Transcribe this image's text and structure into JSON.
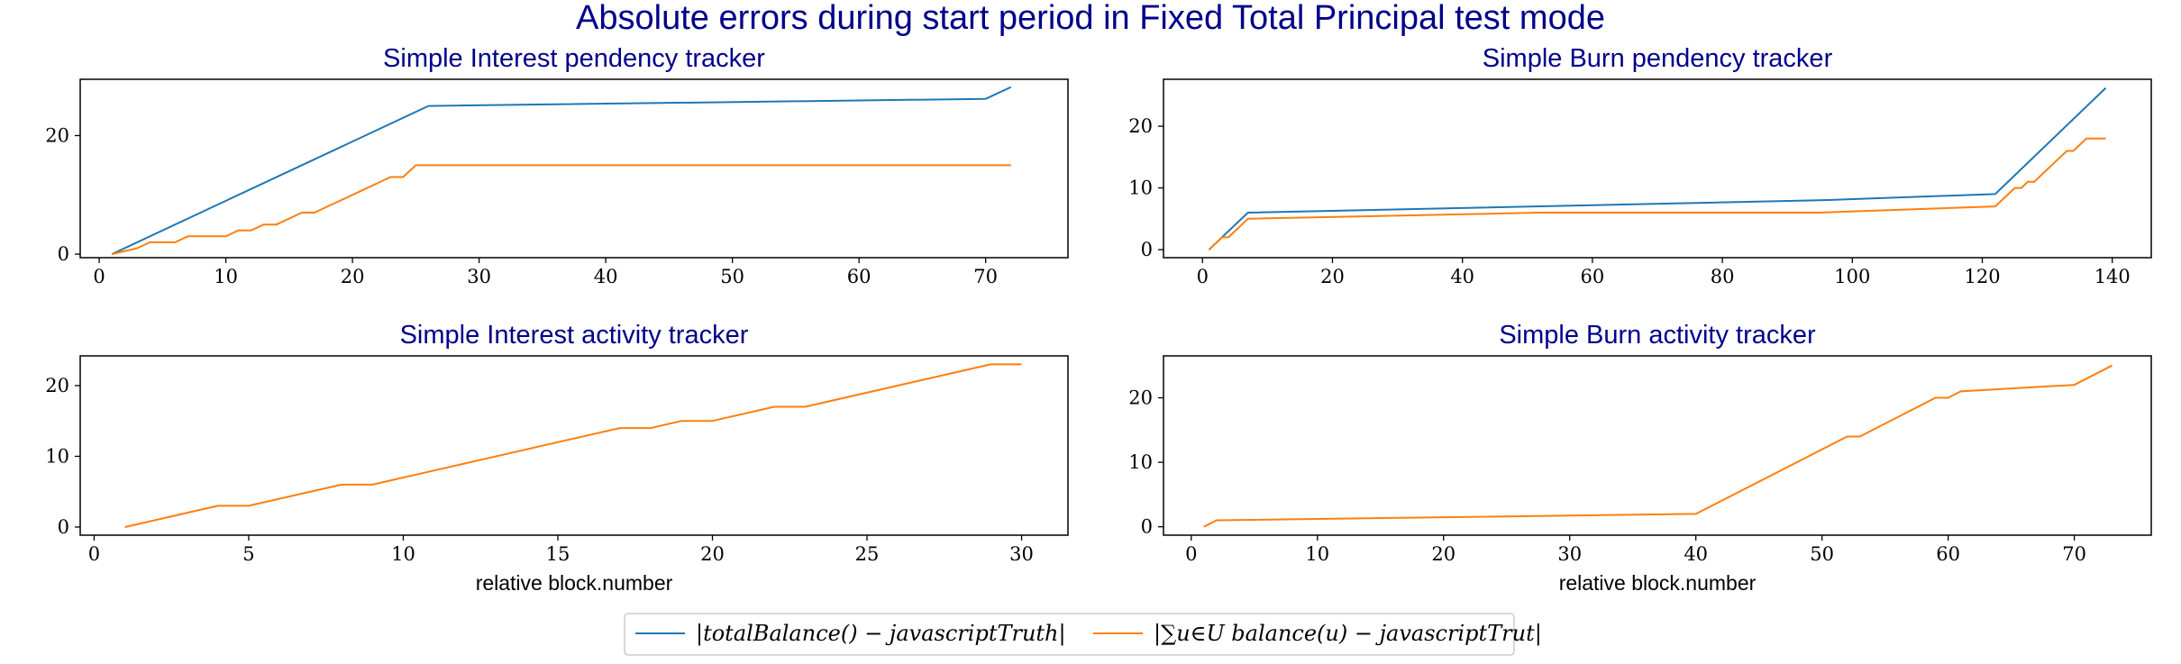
{
  "suptitle": "Absolute errors during start period in Fixed Total Principal test mode",
  "colors": {
    "title": "#00008b",
    "series_blue": "#1f77b4",
    "series_orange": "#ff7f0e",
    "legend_border": "#cccccc"
  },
  "legend": {
    "location": "bottom-center",
    "entries": [
      "|totalBalance() − javascriptTruth|",
      "|∑u∈U balance(u) − javascriptTrut|"
    ]
  },
  "chart_data": [
    {
      "type": "line",
      "title": "Simple Interest pendency tracker",
      "xlabel": "",
      "ylabel": "",
      "xlim": [
        -1.5,
        76.5
      ],
      "ylim": [
        -0.6,
        29.5
      ],
      "xticks": [
        0,
        10,
        20,
        30,
        40,
        50,
        60,
        70
      ],
      "yticks": [
        0,
        20
      ],
      "grid": false,
      "series": [
        {
          "name": "|totalBalance() − javascriptTruth|",
          "color": "#1f77b4",
          "x": [
            1,
            26,
            70,
            72
          ],
          "y": [
            0,
            25,
            26.2,
            28.2
          ]
        },
        {
          "name": "|∑u∈U balance(u) − javascriptTrut|",
          "color": "#ff7f0e",
          "x": [
            1,
            3,
            4,
            5,
            6,
            7,
            8,
            9,
            10,
            11,
            12,
            13,
            14,
            15,
            16,
            17,
            18,
            19,
            20,
            21,
            22,
            23,
            24,
            25,
            72
          ],
          "y": [
            0,
            1,
            2,
            2,
            2,
            3,
            3,
            3,
            3,
            4,
            4,
            5,
            5,
            6,
            7,
            7,
            8,
            9,
            10,
            11,
            12,
            13,
            13,
            15,
            15
          ]
        }
      ]
    },
    {
      "type": "line",
      "title": "Simple Burn pendency tracker",
      "xlabel": "",
      "ylabel": "",
      "xlim": [
        -6,
        146
      ],
      "ylim": [
        -1.3,
        27.6
      ],
      "xticks": [
        0,
        20,
        40,
        60,
        80,
        100,
        120,
        140
      ],
      "yticks": [
        0,
        10,
        20
      ],
      "grid": false,
      "series": [
        {
          "name": "|totalBalance() − javascriptTruth|",
          "color": "#1f77b4",
          "x": [
            1,
            7,
            95,
            122,
            139
          ],
          "y": [
            0,
            6,
            8,
            9,
            26.2
          ]
        },
        {
          "name": "|∑u∈U balance(u) − javascriptTrut|",
          "color": "#ff7f0e",
          "x": [
            1,
            2,
            3,
            4,
            5,
            6,
            7,
            52,
            95,
            122,
            124,
            125,
            126,
            127,
            128,
            129,
            130,
            131,
            132,
            133,
            134,
            135,
            136,
            137,
            138,
            139
          ],
          "y": [
            0,
            1,
            2,
            2,
            3,
            4,
            5,
            6,
            6,
            7,
            9,
            10,
            10,
            11,
            11,
            12,
            13,
            14,
            15,
            16,
            16,
            17,
            18,
            18,
            18,
            18
          ]
        }
      ]
    },
    {
      "type": "line",
      "title": "Simple Interest activity tracker",
      "xlabel": "relative block.number",
      "ylabel": "",
      "xlim": [
        -0.45,
        31.5
      ],
      "ylim": [
        -1.15,
        24.2
      ],
      "xticks": [
        0,
        5,
        10,
        15,
        20,
        25,
        30
      ],
      "yticks": [
        0,
        10,
        20
      ],
      "grid": false,
      "series": [
        {
          "name": "|∑u∈U balance(u) − javascriptTrut|",
          "color": "#ff7f0e",
          "x": [
            1,
            4,
            5,
            8,
            9,
            17,
            18,
            19,
            20,
            22,
            23,
            29,
            30
          ],
          "y": [
            0,
            3,
            3,
            6,
            6,
            14,
            14,
            15,
            15,
            17,
            17,
            23,
            23
          ]
        }
      ]
    },
    {
      "type": "line",
      "title": "Simple Burn activity tracker",
      "xlabel": "relative block.number",
      "ylabel": "",
      "xlim": [
        -2.2,
        76.1
      ],
      "ylim": [
        -1.3,
        26.5
      ],
      "xticks": [
        0,
        10,
        20,
        30,
        40,
        50,
        60,
        70
      ],
      "yticks": [
        0,
        10,
        20
      ],
      "grid": false,
      "series": [
        {
          "name": "|∑u∈U balance(u) − javascriptTrut|",
          "color": "#ff7f0e",
          "x": [
            1,
            2,
            40,
            52,
            53,
            59,
            60,
            61,
            70,
            73
          ],
          "y": [
            0,
            1,
            2,
            14,
            14,
            20,
            20,
            21,
            22,
            25
          ]
        }
      ]
    }
  ]
}
